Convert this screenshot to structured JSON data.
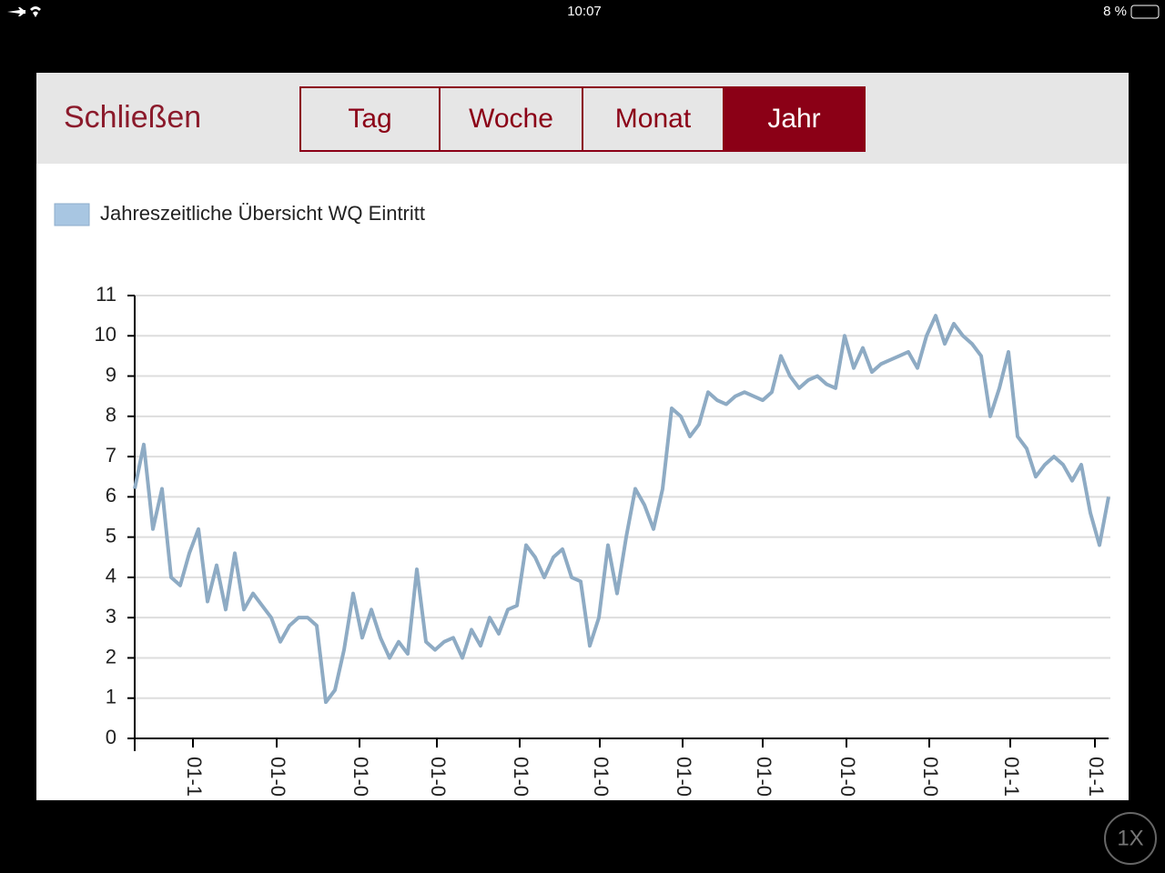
{
  "status_bar": {
    "time": "10:07",
    "battery": "8 %"
  },
  "toolbar": {
    "close": "Schließen",
    "segments": [
      "Tag",
      "Woche",
      "Monat",
      "Jahr"
    ],
    "selected": 3
  },
  "chart_data": {
    "type": "line",
    "series": [
      {
        "name": "Jahreszeitliche Übersicht WQ Eintritt",
        "color": "#8eabc4",
        "values": [
          6.2,
          7.3,
          5.2,
          6.2,
          4.0,
          3.8,
          4.6,
          5.2,
          3.4,
          4.3,
          3.2,
          4.6,
          3.2,
          3.6,
          3.3,
          3.0,
          2.4,
          2.8,
          3.0,
          3.0,
          2.8,
          0.9,
          1.2,
          2.2,
          3.6,
          2.5,
          3.2,
          2.5,
          2.0,
          2.4,
          2.1,
          4.2,
          2.4,
          2.2,
          2.4,
          2.5,
          2.0,
          2.7,
          2.3,
          3.0,
          2.6,
          3.2,
          3.3,
          4.8,
          4.5,
          4.0,
          4.5,
          4.7,
          4.0,
          3.9,
          2.3,
          3.0,
          4.8,
          3.6,
          5.0,
          6.2,
          5.8,
          5.2,
          6.2,
          8.2,
          8.0,
          7.5,
          7.8,
          8.6,
          8.4,
          8.3,
          8.5,
          8.6,
          8.5,
          8.4,
          8.6,
          9.5,
          9.0,
          8.7,
          8.9,
          9.0,
          8.8,
          8.7,
          10.0,
          9.2,
          9.7,
          9.1,
          9.3,
          9.4,
          9.5,
          9.6,
          9.2,
          10.0,
          10.5,
          9.8,
          10.3,
          10.0,
          9.8,
          9.5,
          8.0,
          8.7,
          9.6,
          7.5,
          7.2,
          6.5,
          6.8,
          7.0,
          6.8,
          6.4,
          6.8,
          5.6,
          4.8,
          6.0
        ]
      }
    ],
    "xlim": [
      0,
      107
    ],
    "xticks": [
      {
        "value": 6.4,
        "label": "01-1"
      },
      {
        "value": 15.6,
        "label": "01-0"
      },
      {
        "value": 24.7,
        "label": "01-0"
      },
      {
        "value": 33.2,
        "label": "01-0"
      },
      {
        "value": 42.3,
        "label": "01-0"
      },
      {
        "value": 51.1,
        "label": "01-0"
      },
      {
        "value": 60.2,
        "label": "01-0"
      },
      {
        "value": 69,
        "label": "01-0"
      },
      {
        "value": 78.2,
        "label": "01-0"
      },
      {
        "value": 87.3,
        "label": "01-0"
      },
      {
        "value": 96.2,
        "label": "01-1"
      },
      {
        "value": 105.5,
        "label": "01-1"
      }
    ],
    "ylim": [
      0,
      11
    ],
    "yticks": [
      0,
      1,
      2,
      3,
      4,
      5,
      6,
      7,
      8,
      9,
      10,
      11
    ],
    "grid": true
  },
  "zoom": "1X"
}
